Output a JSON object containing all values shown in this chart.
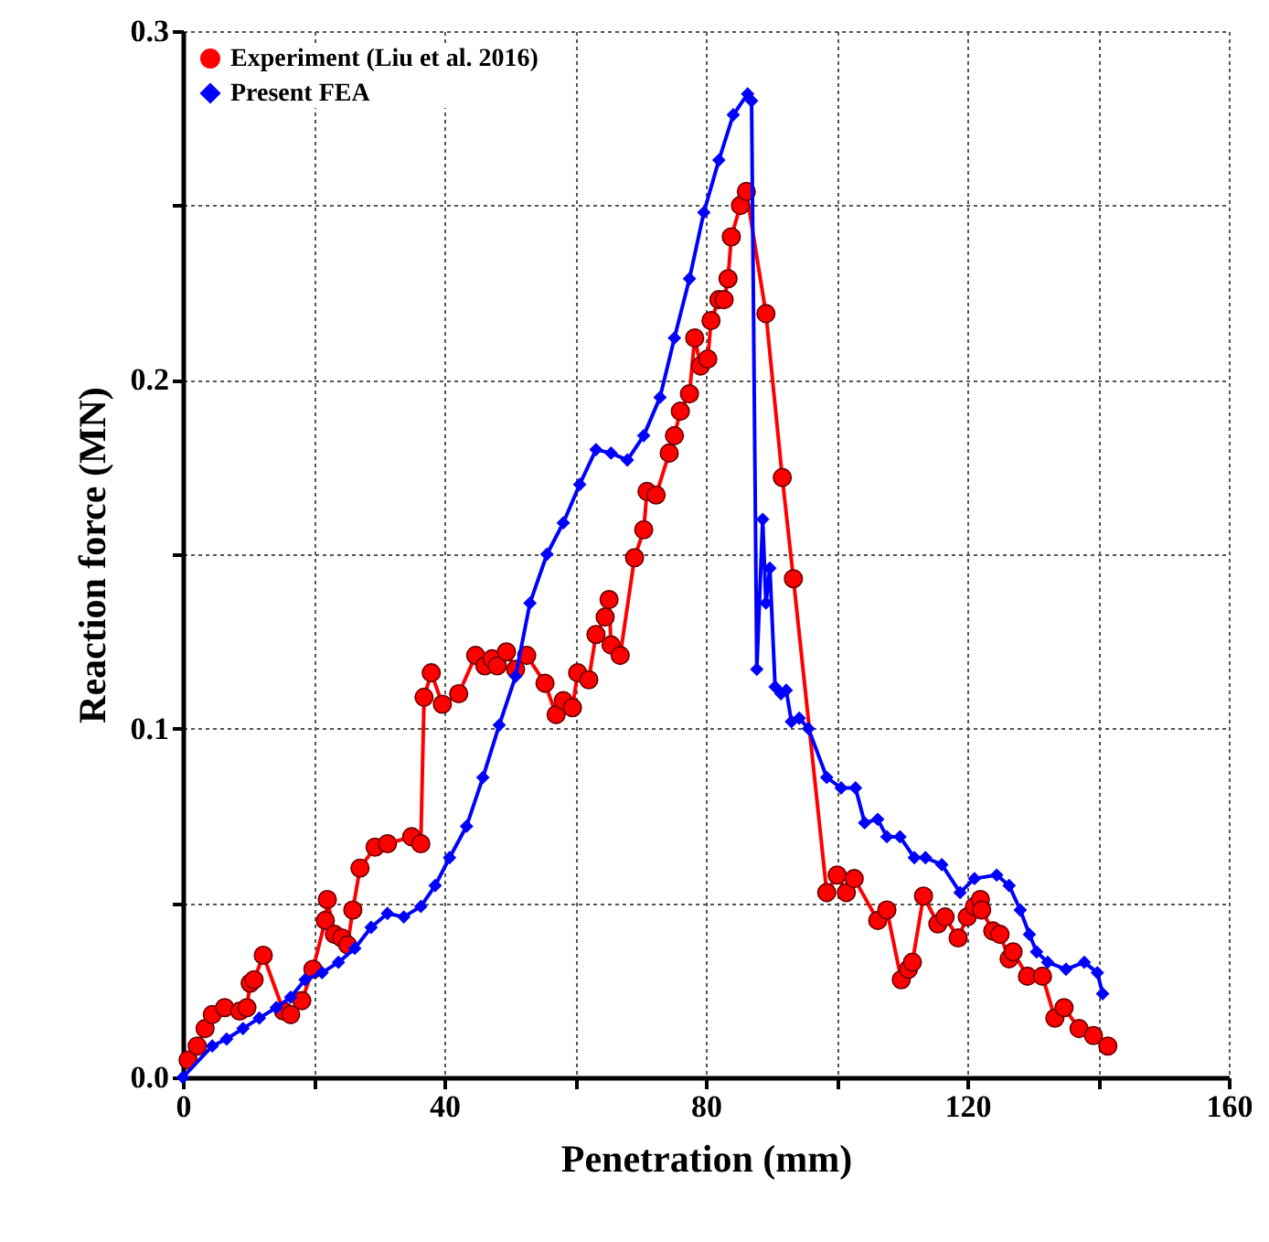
{
  "chart_data": {
    "type": "line",
    "xlabel": "Penetration (mm)",
    "ylabel": "Reaction force (MN)",
    "xlim": [
      0,
      160
    ],
    "xticks": [
      0,
      {
        "value": 20,
        "label": null
      },
      40,
      {
        "value": 60,
        "label": null
      },
      80,
      {
        "value": 100,
        "label": null
      },
      120,
      {
        "value": 140,
        "label": null
      },
      160
    ],
    "ylim": [
      0,
      0.3
    ],
    "yticks": [
      {
        "value": 0,
        "label": "0.0"
      },
      {
        "value": 0.05,
        "label": null
      },
      0.1,
      {
        "value": 0.15,
        "label": null
      },
      0.2,
      {
        "value": 0.25,
        "label": null
      },
      0.3
    ],
    "grid": true,
    "legend": "top left",
    "line_style": "solid",
    "series": [
      {
        "name": "Experiment (Liu et al. 2016)",
        "color": "#ff0000",
        "marker": "circle",
        "x": [
          0.8,
          2.2,
          3.4,
          4.5,
          6.4,
          8.7,
          9.8,
          10.3,
          10.9,
          12.3,
          15.4,
          16.5,
          18.2,
          19.9,
          21.8,
          22.1,
          23.2,
          24.3,
          25.2,
          26.0,
          27.1,
          29.4,
          31.3,
          35.0,
          36.4,
          36.9,
          38.0,
          39.7,
          42.2,
          44.8,
          46.2,
          47.3,
          48.1,
          49.5,
          50.9,
          52.6,
          55.4,
          57.1,
          58.2,
          59.6,
          60.4,
          62.1,
          63.2,
          64.6,
          65.2,
          65.5,
          66.9,
          69.1,
          70.5,
          71.0,
          72.4,
          74.4,
          75.2,
          76.1,
          77.5,
          78.3,
          79.2,
          80.3,
          80.8,
          82.0,
          82.8,
          83.4,
          83.9,
          85.3,
          86.2,
          89.2,
          91.7,
          93.4,
          98.5,
          100.1,
          101.5,
          102.7,
          106.3,
          107.7,
          109.9,
          111.0,
          111.6,
          113.3,
          115.5,
          116.6,
          118.6,
          120.0,
          121.1,
          122.0,
          122.2,
          123.9,
          125.0,
          126.4,
          127.0,
          129.2,
          131.5,
          133.4,
          134.8,
          137.1,
          139.3,
          141.5
        ],
        "values": [
          0.005,
          0.009,
          0.014,
          0.018,
          0.02,
          0.019,
          0.02,
          0.027,
          0.028,
          0.035,
          0.019,
          0.018,
          0.022,
          0.031,
          0.045,
          0.051,
          0.041,
          0.04,
          0.038,
          0.048,
          0.06,
          0.066,
          0.067,
          0.069,
          0.067,
          0.109,
          0.116,
          0.107,
          0.11,
          0.121,
          0.118,
          0.12,
          0.118,
          0.122,
          0.117,
          0.121,
          0.113,
          0.104,
          0.108,
          0.106,
          0.116,
          0.114,
          0.127,
          0.132,
          0.137,
          0.124,
          0.121,
          0.149,
          0.157,
          0.168,
          0.167,
          0.179,
          0.184,
          0.191,
          0.196,
          0.212,
          0.204,
          0.206,
          0.217,
          0.223,
          0.223,
          0.229,
          0.241,
          0.25,
          0.254,
          0.219,
          0.172,
          0.143,
          0.053,
          0.058,
          0.053,
          0.057,
          0.045,
          0.048,
          0.028,
          0.031,
          0.033,
          0.052,
          0.044,
          0.046,
          0.04,
          0.046,
          0.049,
          0.051,
          0.048,
          0.042,
          0.041,
          0.034,
          0.036,
          0.029,
          0.029,
          0.017,
          0.02,
          0.014,
          0.012,
          0.009
        ]
      },
      {
        "name": "Present FEA",
        "color": "#0000ff",
        "marker": "diamond",
        "x": [
          0,
          4.5,
          6.7,
          9.2,
          11.7,
          14.3,
          16.5,
          18.7,
          21.3,
          23.8,
          26.3,
          28.8,
          31.3,
          33.8,
          36.4,
          38.6,
          40.8,
          43.4,
          45.9,
          48.4,
          50.9,
          53.1,
          55.7,
          58.2,
          60.7,
          63.2,
          65.5,
          68.0,
          70.5,
          73.0,
          75.2,
          77.5,
          79.7,
          82.0,
          84.2,
          86.4,
          87.0,
          87.8,
          88.7,
          89.2,
          89.8,
          90.6,
          91.5,
          92.3,
          93.1,
          94.3,
          95.7,
          98.5,
          100.7,
          102.9,
          104.3,
          106.3,
          107.7,
          109.7,
          111.9,
          113.6,
          116.1,
          118.9,
          121.1,
          124.5,
          126.4,
          128.1,
          129.5,
          130.6,
          132.3,
          135.1,
          137.9,
          139.9,
          140.7
        ],
        "values": [
          0,
          0.009,
          0.011,
          0.014,
          0.017,
          0.02,
          0.023,
          0.028,
          0.03,
          0.033,
          0.037,
          0.043,
          0.047,
          0.046,
          0.049,
          0.055,
          0.063,
          0.072,
          0.086,
          0.101,
          0.115,
          0.136,
          0.15,
          0.159,
          0.17,
          0.18,
          0.179,
          0.177,
          0.184,
          0.195,
          0.212,
          0.229,
          0.248,
          0.263,
          0.276,
          0.282,
          0.28,
          0.117,
          0.16,
          0.136,
          0.146,
          0.112,
          0.11,
          0.111,
          0.102,
          0.103,
          0.1,
          0.086,
          0.083,
          0.083,
          0.073,
          0.074,
          0.069,
          0.069,
          0.063,
          0.063,
          0.061,
          0.053,
          0.057,
          0.058,
          0.055,
          0.048,
          0.041,
          0.036,
          0.033,
          0.031,
          0.033,
          0.03,
          0.024
        ]
      }
    ]
  }
}
